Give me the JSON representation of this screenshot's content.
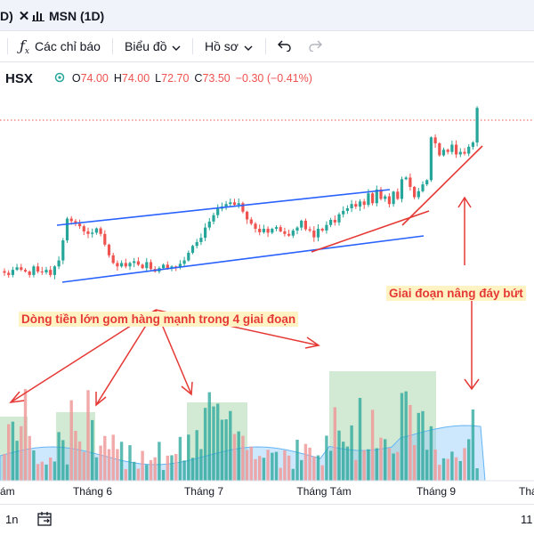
{
  "tabs": {
    "left_partial": "D)",
    "active_label": "MSN (1D)"
  },
  "toolbar": {
    "indicators_label": "Các chỉ báo",
    "chart_type_label": "Biểu đồ",
    "profile_label": "Hồ sơ"
  },
  "legend": {
    "exchange": "HSX",
    "open_label": "O",
    "open": "74.00",
    "high_label": "H",
    "high": "74.00",
    "low_label": "L",
    "low": "72.70",
    "close_label": "C",
    "close": "73.50",
    "change": "−0.30 (−0.41%)"
  },
  "annotations": {
    "accumulation": "Dòng tiền lớn gom hàng mạnh trong 4 giai đoạn",
    "higher_lows": "Giai đoạn nâng đáy bứt"
  },
  "x_axis": [
    "ám",
    "Tháng 6",
    "Tháng 7",
    "Tháng Tám",
    "Tháng 9",
    "Thá"
  ],
  "bottom": {
    "range_label": "1n",
    "right_partial": "11"
  },
  "colors": {
    "up": "#26a69a",
    "down": "#ef5350",
    "trendline": "#2962ff",
    "arrow": "#e53935",
    "volume_zone": "#a5d6a7"
  },
  "chart_data": {
    "type": "candlestick",
    "close": [
      34.9,
      34.4,
      35.6,
      36.2,
      35.6,
      35.2,
      34.4,
      36.4,
      35.2,
      35.0,
      35.6,
      34.4,
      36.4,
      37.8,
      42.5,
      47.6,
      47.0,
      46.4,
      45.8,
      44.6,
      44.0,
      44.3,
      45.3,
      44.0,
      41.5,
      39.0,
      37.2,
      36.4,
      37.2,
      36.4,
      37.2,
      37.6,
      36.8,
      36.0,
      37.4,
      35.8,
      35.2,
      36.0,
      36.8,
      35.9,
      36.4,
      36.2,
      37.0,
      37.8,
      39.6,
      41.2,
      42.1,
      43.1,
      45.5,
      46.9,
      48.4,
      49.9,
      50.4,
      51.0,
      51.4,
      50.8,
      51.2,
      49.2,
      47.4,
      46.4,
      45.2,
      44.4,
      45.2,
      44.3,
      45.2,
      45.6,
      44.6,
      44.0,
      43.6,
      44.8,
      45.5,
      47.1,
      45.1,
      44.8,
      43.2,
      45.2,
      44.8,
      46.1,
      47.3,
      46.7,
      48.6,
      49.4,
      50.0,
      51.0,
      50.4,
      51.6,
      50.8,
      53.5,
      51.2,
      54.4,
      52.2,
      52.8,
      51.0,
      53.9,
      52.2,
      56.8,
      57.2,
      55.0,
      52.6,
      54.0,
      55.6,
      56.6,
      66.6,
      65.2,
      62.4,
      63.7,
      63.2,
      64.9,
      62.6,
      63.2,
      62.8,
      64.4,
      65.4,
      73.5
    ],
    "volume_note": "Volume bars; shaded zones mark the 4 accumulation phases"
  }
}
